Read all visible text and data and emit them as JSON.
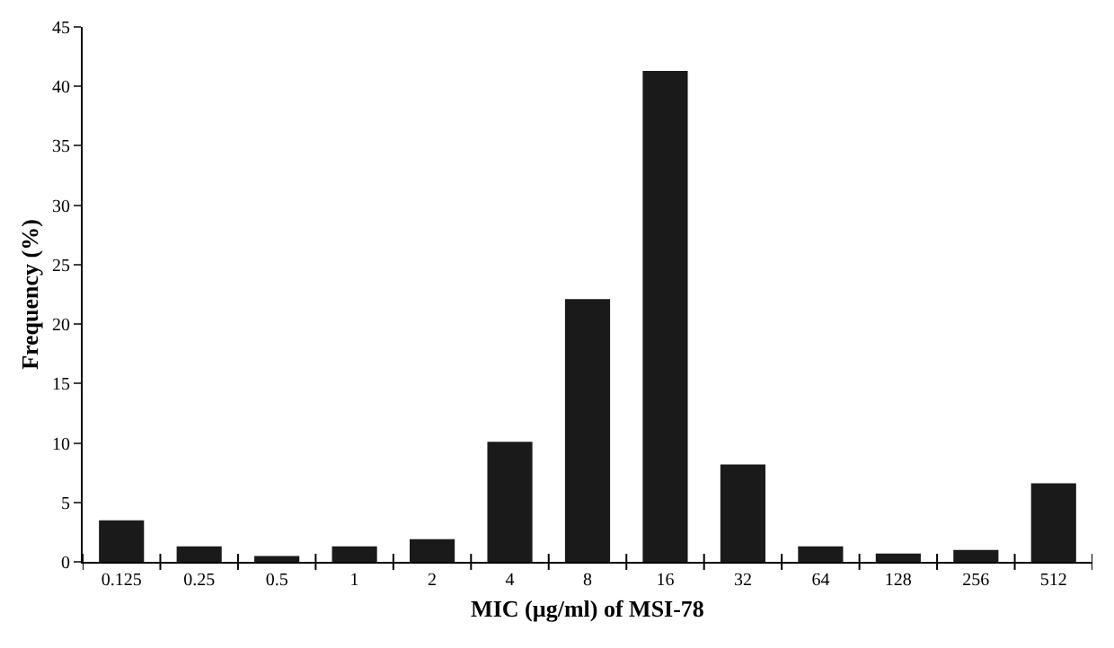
{
  "chart_data": {
    "type": "bar",
    "xlabel": "MIC (µg/ml) of MSI-78",
    "ylabel": "Frequency (%)",
    "categories": [
      "0.125",
      "0.25",
      "0.5",
      "1",
      "2",
      "4",
      "8",
      "16",
      "32",
      "64",
      "128",
      "256",
      "512"
    ],
    "values": [
      3.5,
      1.3,
      0.5,
      1.3,
      1.9,
      10.1,
      22.1,
      41.3,
      8.2,
      1.3,
      0.7,
      1.0,
      6.6
    ],
    "color": "#1a1a1a",
    "ylim": [
      0,
      45
    ],
    "yticks": [
      0,
      5,
      10,
      15,
      20,
      25,
      30,
      35,
      40,
      45
    ]
  }
}
